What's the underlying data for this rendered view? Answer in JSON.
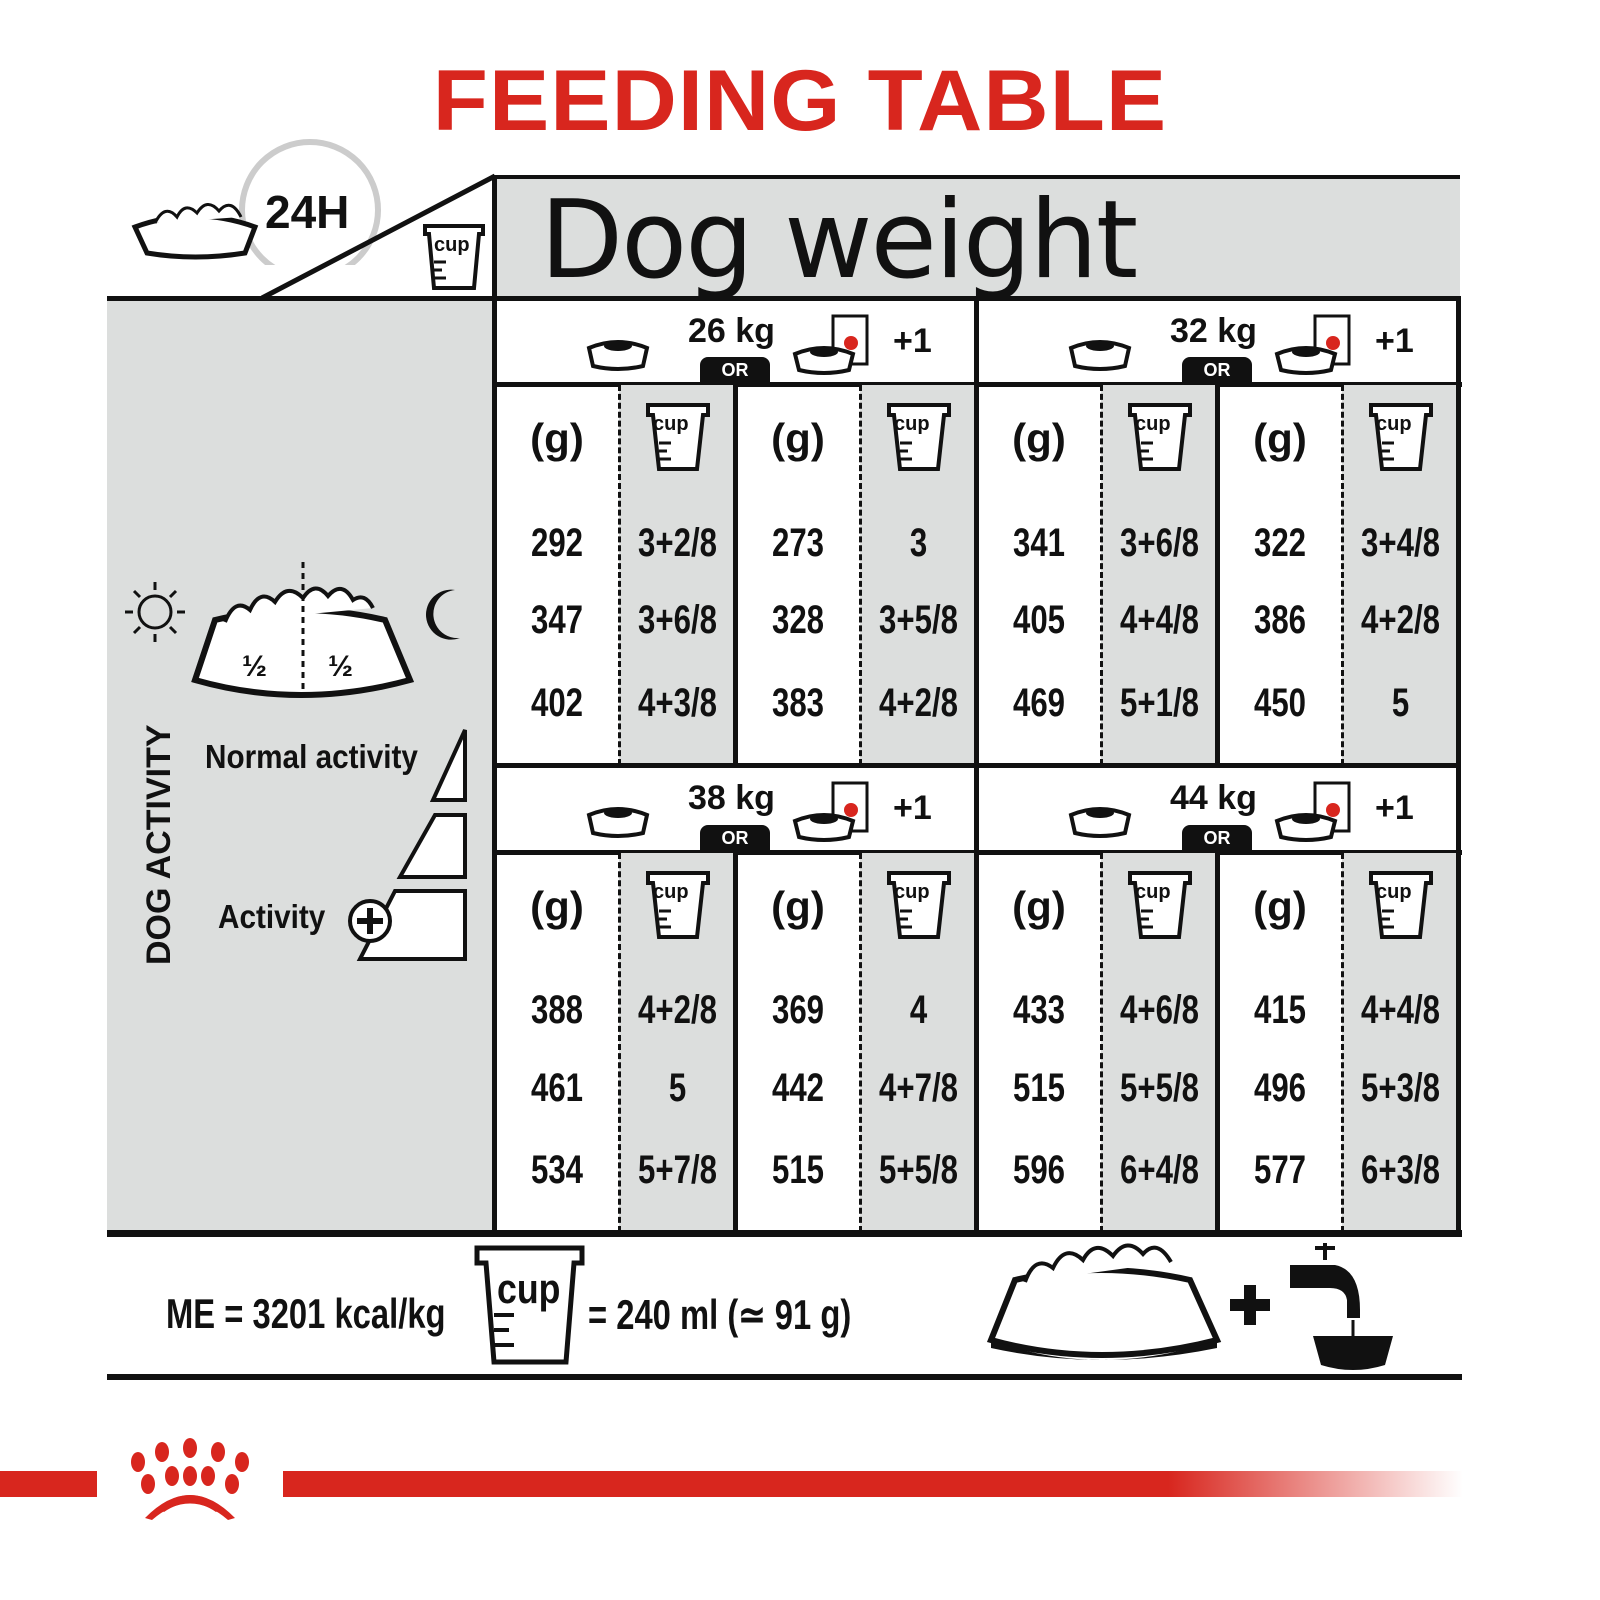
{
  "title": "FEEDING TABLE",
  "colors": {
    "brand_red": "#d8261e",
    "panel_gray": "#dcdedd"
  },
  "top_left": {
    "duration": "24H",
    "cup_label": "cup"
  },
  "header": "Dog weight",
  "unit_grams": "(g)",
  "cup_label": "cup",
  "or_label": "OR",
  "plus_one": "+1",
  "left": {
    "half_left": "½",
    "half_right": "½",
    "section_label": "DOG ACTIVITY",
    "normal_activity": "Normal activity",
    "high_activity": "Activity",
    "icons": [
      "sun-icon",
      "moon-icon",
      "bowl-icon",
      "plus-circle-icon"
    ]
  },
  "blocks": [
    {
      "weight": "26 kg",
      "groups": [
        {
          "rows": [
            {
              "g": "292",
              "cup": "3+2/8"
            },
            {
              "g": "347",
              "cup": "3+6/8"
            },
            {
              "g": "402",
              "cup": "4+3/8"
            }
          ]
        },
        {
          "rows": [
            {
              "g": "273",
              "cup": "3"
            },
            {
              "g": "328",
              "cup": "3+5/8"
            },
            {
              "g": "383",
              "cup": "4+2/8"
            }
          ]
        }
      ]
    },
    {
      "weight": "32 kg",
      "groups": [
        {
          "rows": [
            {
              "g": "341",
              "cup": "3+6/8"
            },
            {
              "g": "405",
              "cup": "4+4/8"
            },
            {
              "g": "469",
              "cup": "5+1/8"
            }
          ]
        },
        {
          "rows": [
            {
              "g": "322",
              "cup": "3+4/8"
            },
            {
              "g": "386",
              "cup": "4+2/8"
            },
            {
              "g": "450",
              "cup": "5"
            }
          ]
        }
      ]
    },
    {
      "weight": "38 kg",
      "groups": [
        {
          "rows": [
            {
              "g": "388",
              "cup": "4+2/8"
            },
            {
              "g": "461",
              "cup": "5"
            },
            {
              "g": "534",
              "cup": "5+7/8"
            }
          ]
        },
        {
          "rows": [
            {
              "g": "369",
              "cup": "4"
            },
            {
              "g": "442",
              "cup": "4+7/8"
            },
            {
              "g": "515",
              "cup": "5+5/8"
            }
          ]
        }
      ]
    },
    {
      "weight": "44 kg",
      "groups": [
        {
          "rows": [
            {
              "g": "433",
              "cup": "4+6/8"
            },
            {
              "g": "515",
              "cup": "5+5/8"
            },
            {
              "g": "596",
              "cup": "6+4/8"
            }
          ]
        },
        {
          "rows": [
            {
              "g": "415",
              "cup": "4+4/8"
            },
            {
              "g": "496",
              "cup": "5+3/8"
            },
            {
              "g": "577",
              "cup": "6+3/8"
            }
          ]
        }
      ]
    }
  ],
  "footer": {
    "energy": "ME = 3201 kcal/kg",
    "cup_label": "cup",
    "cup_equiv": "= 240 ml (≃ 91 g)",
    "plus": "+"
  }
}
